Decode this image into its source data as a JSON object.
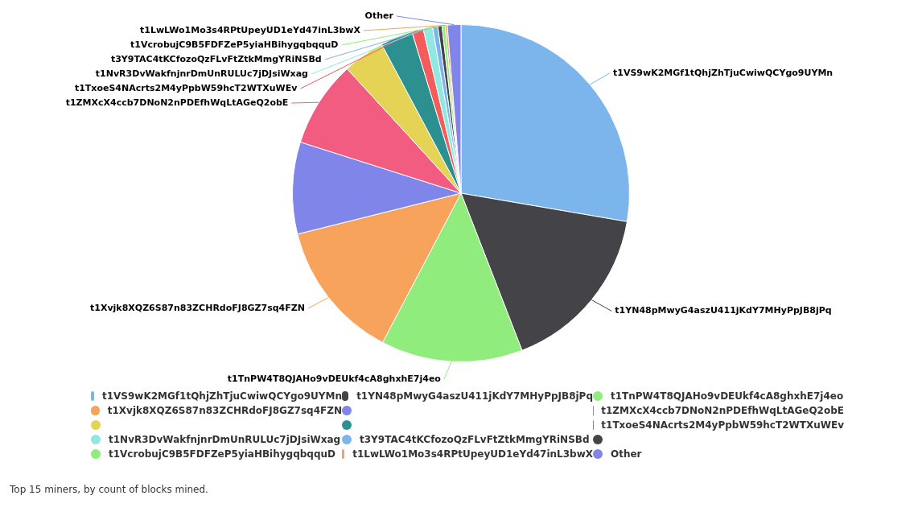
{
  "chart_data": {
    "type": "pie",
    "categories": [
      "t1VS9wK2MGf1tQhjZhTjuCwiwQCYgo9UYMn",
      "t1YN48pMwyG4aszU411jKdY7MHyPpJB8jPq",
      "t1TnPW4T8QJAHo9vDEUkf4cA8ghxhE7j4eo",
      "t1Xvjk8XQZ6S87n83ZCHRdoFJ8GZ7sq4FZN",
      null,
      "t1ZMXcX4ccb7DNoN2nPDEfhWqLtAGeQ2obE",
      null,
      null,
      "t1TxoeS4NAcrts2M4yPpbW59hcT2WTXuWEv",
      "t1NvR3DvWakfnjnrDmUnRULUc7jDJsiWxag",
      "t3Y9TAC4tKCfozoQzFLvFtZtkMmgYRiNSBd",
      null,
      "t1VcrobujC9B5FDFZeP5yiaHBihygqbqquD",
      "t1LwLWo1Mo3s4RPtUpeyUD1eYd47inL3bwX",
      "Other"
    ],
    "values": [
      27.7,
      16.4,
      13.6,
      13.4,
      8.8,
      8.3,
      4.0,
      3.1,
      1.1,
      0.9,
      0.5,
      0.4,
      0.3,
      0.2,
      1.3
    ],
    "colors": [
      "#7cb5ec",
      "#434348",
      "#90ed7d",
      "#f7a35c",
      "#8085e9",
      "#f15c80",
      "#e4d354",
      "#2b908f",
      "#f45b5b",
      "#91e8e1",
      "#7cb5ec",
      "#434348",
      "#90ed7d",
      "#f7a35c",
      "#8085e9"
    ],
    "legend": "bottom",
    "annotations": [
      "Top 15 miners, by count of blocks mined."
    ]
  }
}
